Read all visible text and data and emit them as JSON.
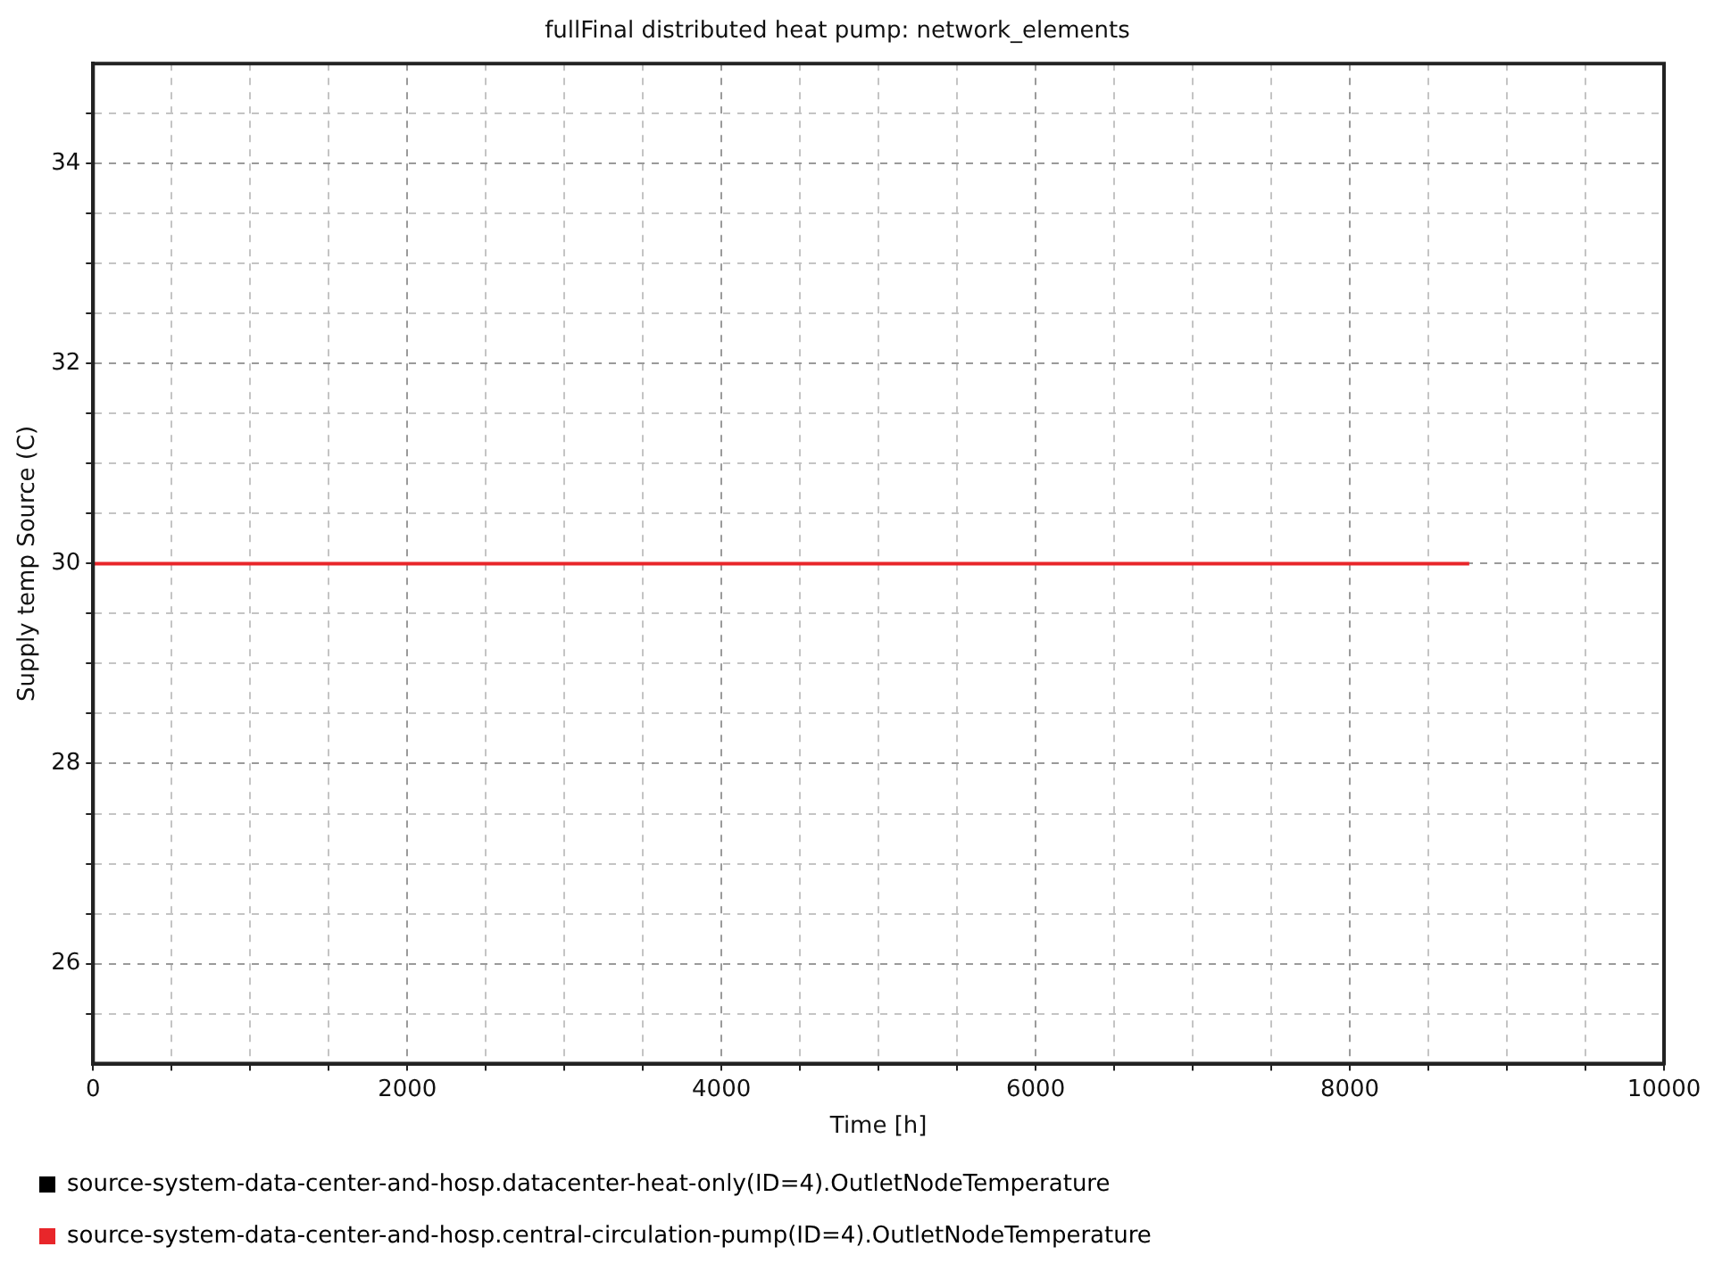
{
  "chart_data": {
    "type": "line",
    "title": "fullFinal distributed heat pump: network_elements",
    "xlabel": "Time [h]",
    "ylabel": "Supply temp Source (C)",
    "xlim": [
      0,
      10000
    ],
    "xticks": [
      0,
      {
        "value": 500,
        "label": null
      },
      {
        "value": 1000,
        "label": null
      },
      {
        "value": 1500,
        "label": null
      },
      2000,
      {
        "value": 2500,
        "label": null
      },
      {
        "value": 3000,
        "label": null
      },
      {
        "value": 3500,
        "label": null
      },
      4000,
      {
        "value": 4500,
        "label": null
      },
      {
        "value": 5000,
        "label": null
      },
      {
        "value": 5500,
        "label": null
      },
      6000,
      {
        "value": 6500,
        "label": null
      },
      {
        "value": 7000,
        "label": null
      },
      {
        "value": 7500,
        "label": null
      },
      8000,
      {
        "value": 8500,
        "label": null
      },
      {
        "value": 9000,
        "label": null
      },
      {
        "value": 9500,
        "label": null
      },
      10000
    ],
    "ylim": [
      25,
      35
    ],
    "yticks": [
      {
        "value": 25.5,
        "label": null
      },
      26,
      {
        "value": 26.5,
        "label": null
      },
      {
        "value": 27,
        "label": null
      },
      {
        "value": 27.5,
        "label": null
      },
      28,
      {
        "value": 28.5,
        "label": null
      },
      {
        "value": 29,
        "label": null
      },
      {
        "value": 29.5,
        "label": null
      },
      30,
      {
        "value": 30.5,
        "label": null
      },
      {
        "value": 31,
        "label": null
      },
      {
        "value": 31.5,
        "label": null
      },
      32,
      {
        "value": 32.5,
        "label": null
      },
      {
        "value": 33,
        "label": null
      },
      {
        "value": 33.5,
        "label": null
      },
      34,
      {
        "value": 34.5,
        "label": null
      }
    ],
    "grid": true,
    "legend": "bottom",
    "marker": "none",
    "line_style": "solid",
    "series": [
      {
        "name": "source-system-data-center-and-hosp.datacenter-heat-only(ID=4).OutletNodeTemperature",
        "color": "#000000"
      },
      {
        "name": "source-system-data-center-and-hosp.central-circulation-pump(ID=4).OutletNodeTemperature",
        "color": "#e8262a",
        "x": [
          0,
          8760
        ],
        "values": [
          30,
          30
        ]
      }
    ]
  }
}
